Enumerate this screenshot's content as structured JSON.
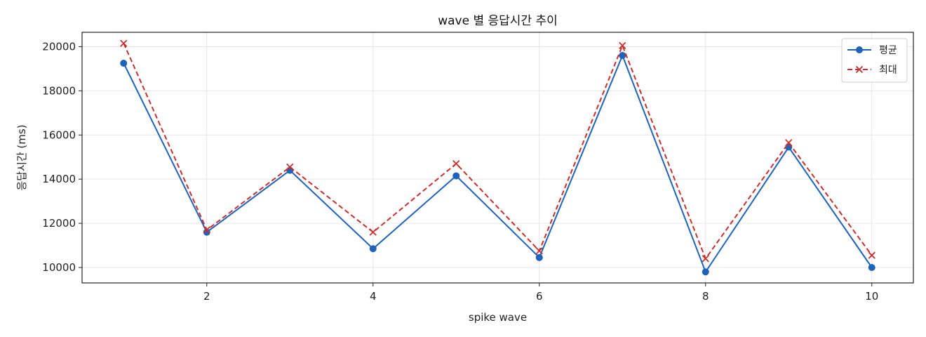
{
  "chart_data": {
    "type": "line",
    "title": "wave 별 응답시간 추이",
    "xlabel": "spike wave",
    "ylabel": "응답시간 (ms)",
    "x": [
      1,
      2,
      3,
      4,
      5,
      6,
      7,
      8,
      9,
      10
    ],
    "xlim": [
      0.5,
      10.5
    ],
    "ylim": [
      9300,
      20650
    ],
    "xticks": [
      2,
      4,
      6,
      8,
      10
    ],
    "yticks": [
      10000,
      12000,
      14000,
      16000,
      18000,
      20000
    ],
    "grid": true,
    "legend_position": "top-right",
    "series": [
      {
        "name": "평균",
        "color": "#1f63b8",
        "marker": "circle",
        "line_style": "solid",
        "values": [
          19250,
          11600,
          14400,
          10850,
          14150,
          10450,
          19600,
          9800,
          15450,
          10000
        ]
      },
      {
        "name": "최대",
        "color": "#c8302f",
        "marker": "x",
        "line_style": "dashed",
        "values": [
          20150,
          11700,
          14550,
          11600,
          14700,
          10750,
          20050,
          10400,
          15650,
          10550
        ]
      }
    ]
  }
}
